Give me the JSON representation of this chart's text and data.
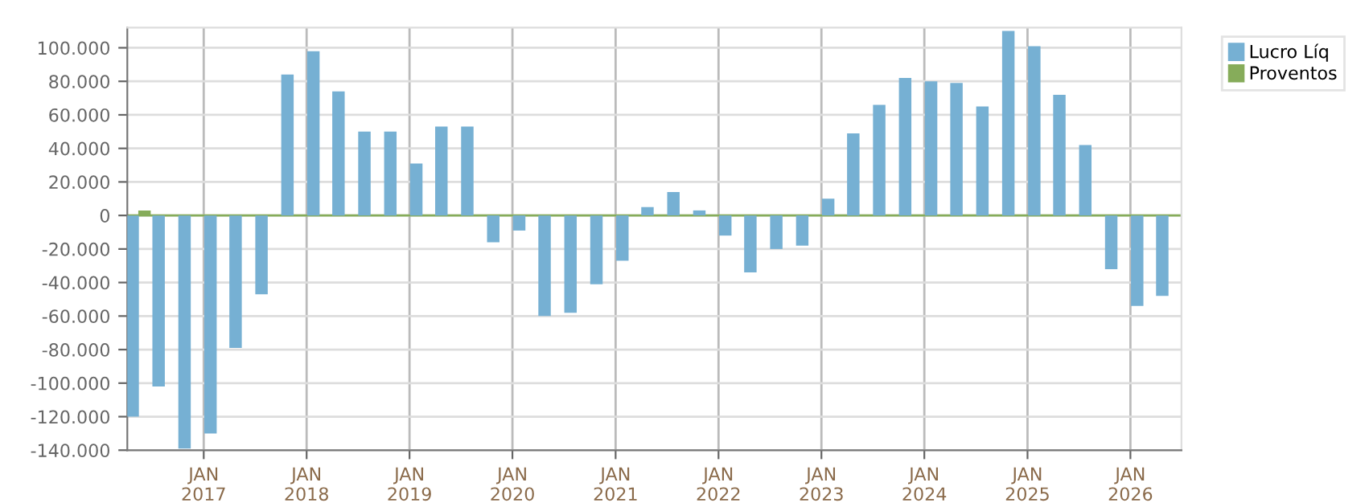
{
  "chart_data": {
    "type": "bar",
    "x": [
      "2016-05-15",
      "2016-08-15",
      "2016-11-15",
      "2017-02-15",
      "2017-05-15",
      "2017-08-15",
      "2017-11-15",
      "2018-02-15",
      "2018-05-15",
      "2018-08-15",
      "2018-11-15",
      "2019-02-15",
      "2019-05-15",
      "2019-08-15",
      "2019-11-15",
      "2020-02-15",
      "2020-05-15",
      "2020-08-15",
      "2020-11-15",
      "2021-02-15",
      "2021-05-15",
      "2021-08-15",
      "2021-11-15",
      "2022-02-15",
      "2022-05-15",
      "2022-08-15",
      "2022-11-15",
      "2023-02-15",
      "2023-05-15",
      "2023-08-15",
      "2023-11-15",
      "2024-02-15",
      "2024-05-15",
      "2024-08-15",
      "2024-11-15",
      "2025-02-15",
      "2025-05-15",
      "2025-08-15",
      "2025-11-15",
      "2026-02-15",
      "2026-05-15"
    ],
    "series": [
      {
        "name": "Lucro Líq",
        "color": "#76b0d3",
        "values": [
          -120000,
          -102000,
          -139000,
          -130000,
          -79000,
          -47000,
          84000,
          98000,
          74000,
          50000,
          50000,
          31000,
          53000,
          53000,
          -16000,
          -9000,
          -60000,
          -58000,
          -41000,
          -27000,
          5000,
          14000,
          3000,
          -12000,
          -34000,
          -20000,
          -18000,
          10000,
          49000,
          66000,
          82000,
          80000,
          79000,
          65000,
          110000,
          101000,
          72000,
          42000,
          -32000,
          -54000,
          -48000
        ]
      },
      {
        "name": "Proventos",
        "color": "#86ac5a",
        "values": [
          3000,
          0,
          0,
          0,
          0,
          0,
          0,
          0,
          0,
          0,
          0,
          0,
          0,
          0,
          0,
          0,
          0,
          0,
          0,
          0,
          0,
          0,
          0,
          0,
          0,
          0,
          0,
          0,
          0,
          0,
          0,
          0,
          0,
          0,
          0,
          0,
          0,
          0,
          0,
          0,
          0
        ]
      }
    ],
    "ylim": [
      -140000,
      112000
    ],
    "yticks": [
      {
        "value": -140000,
        "label": "-140.000"
      },
      {
        "value": -120000,
        "label": "-120.000"
      },
      {
        "value": -100000,
        "label": "-100.000"
      },
      {
        "value": -80000,
        "label": "-80.000"
      },
      {
        "value": -60000,
        "label": "-60.000"
      },
      {
        "value": -40000,
        "label": "-40.000"
      },
      {
        "value": -20000,
        "label": "-20.000"
      },
      0,
      {
        "value": 20000,
        "label": "20.000"
      },
      {
        "value": 40000,
        "label": "40.000"
      },
      {
        "value": 60000,
        "label": "60.000"
      },
      {
        "value": 80000,
        "label": "80.000"
      },
      {
        "value": 100000,
        "label": "100.000"
      }
    ],
    "xlim": [
      "2016-04-05",
      "2026-07-01"
    ],
    "xticks": [
      {
        "value": "2017-01-01",
        "label": "JAN\n2017"
      },
      {
        "value": "2018-01-01",
        "label": "JAN\n2018"
      },
      {
        "value": "2019-01-01",
        "label": "JAN\n2019"
      },
      {
        "value": "2020-01-01",
        "label": "JAN\n2020"
      },
      {
        "value": "2021-01-01",
        "label": "JAN\n2021"
      },
      {
        "value": "2022-01-01",
        "label": "JAN\n2022"
      },
      {
        "value": "2023-01-01",
        "label": "JAN\n2023"
      },
      {
        "value": "2024-01-01",
        "label": "JAN\n2024"
      },
      {
        "value": "2025-01-01",
        "label": "JAN\n2025"
      },
      {
        "value": "2026-01-01",
        "label": "JAN\n2026"
      }
    ],
    "ref_lines": [
      {
        "axis": "y",
        "value": 0,
        "color": "#86ac5a"
      }
    ],
    "grid": true,
    "legend": "top right"
  }
}
